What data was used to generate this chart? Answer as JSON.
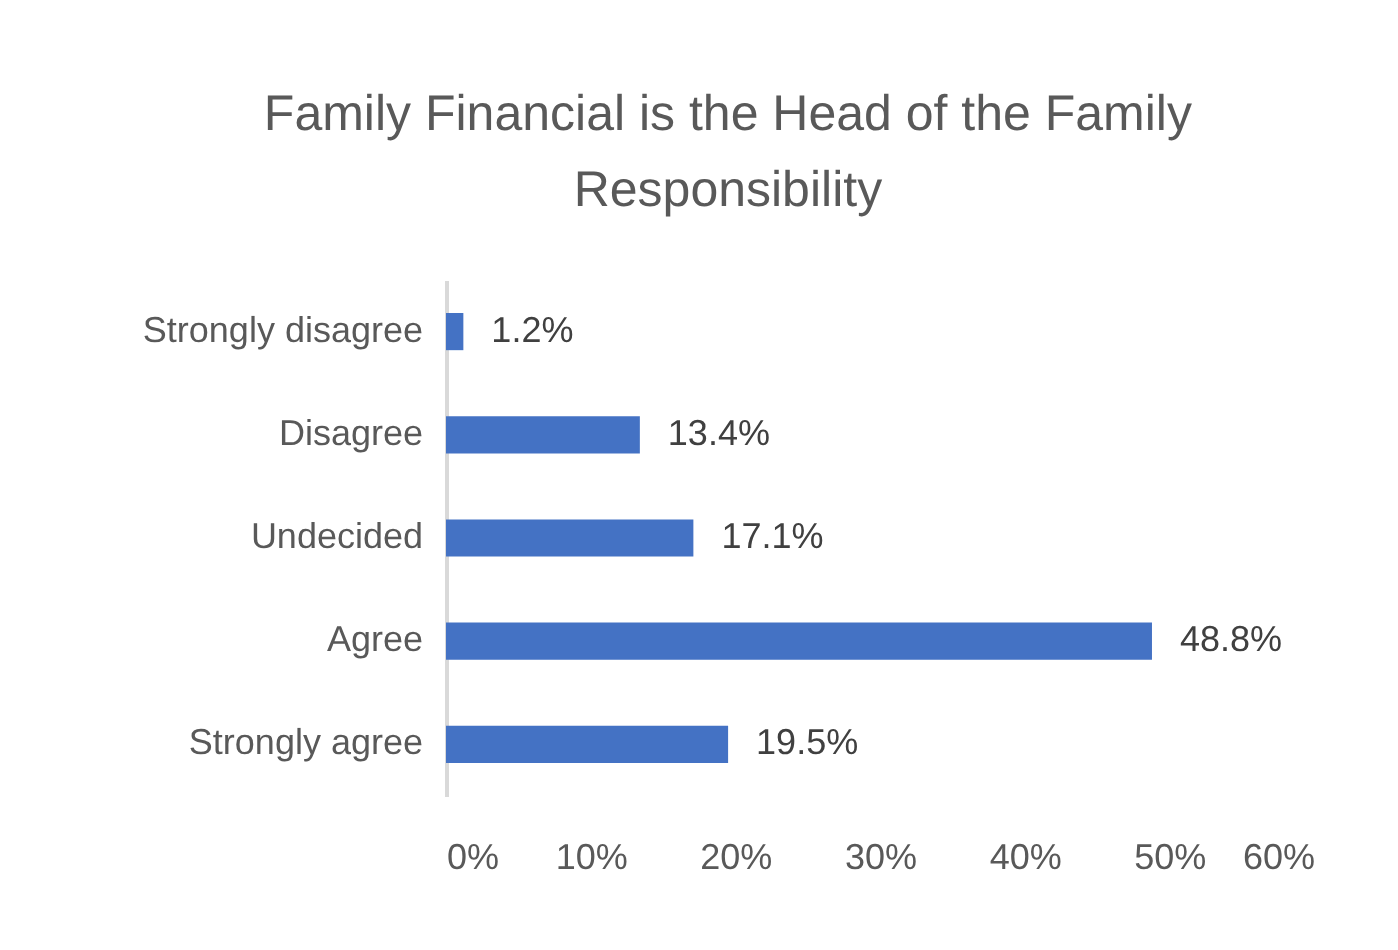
{
  "chart_data": {
    "type": "bar",
    "orientation": "horizontal",
    "title": "Family Financial is the Head of the Family Responsibility",
    "categories": [
      "Strongly disagree",
      "Disagree",
      "Undecided",
      "Agree",
      "Strongly agree"
    ],
    "values": [
      1.2,
      13.4,
      17.1,
      48.8,
      19.5
    ],
    "value_labels": [
      "1.2%",
      "13.4%",
      "17.1%",
      "48.8%",
      "19.5%"
    ],
    "color": "#4472c4",
    "xlim": [
      0,
      60
    ],
    "xticks": [
      {
        "value": 0,
        "label": "0%"
      },
      {
        "value": 10,
        "label": "10%"
      },
      {
        "value": 20,
        "label": "20%"
      },
      {
        "value": 30,
        "label": "30%"
      },
      {
        "value": 40,
        "label": "40%"
      },
      {
        "value": 50,
        "label": "50%"
      },
      {
        "value": 60,
        "label": "60%"
      }
    ],
    "grid": false
  }
}
